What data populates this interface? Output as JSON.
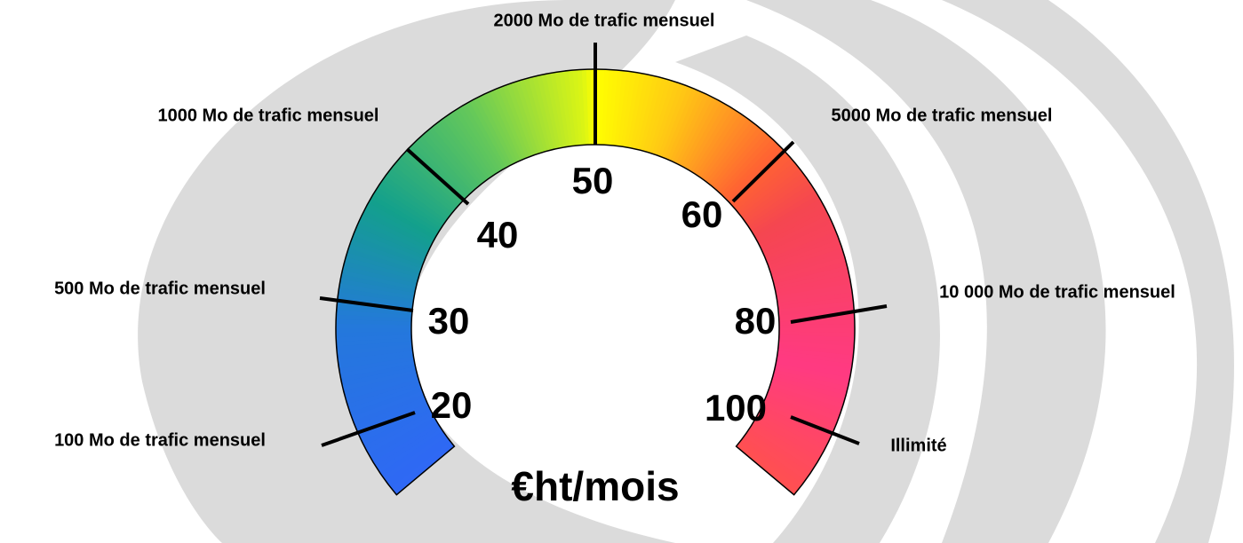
{
  "gauge": {
    "unit": "€ht/mois",
    "ticks": [
      {
        "price": "20",
        "label": "100 Mo de trafic mensuel"
      },
      {
        "price": "30",
        "label": "500 Mo de trafic mensuel"
      },
      {
        "price": "40",
        "label": "1000 Mo de trafic mensuel"
      },
      {
        "price": "50",
        "label": "2000 Mo de trafic mensuel"
      },
      {
        "price": "60",
        "label": "5000 Mo de trafic mensuel"
      },
      {
        "price": "80",
        "label": "10 000 Mo de trafic mensuel"
      },
      {
        "price": "100",
        "label": "Illimité"
      }
    ]
  }
}
